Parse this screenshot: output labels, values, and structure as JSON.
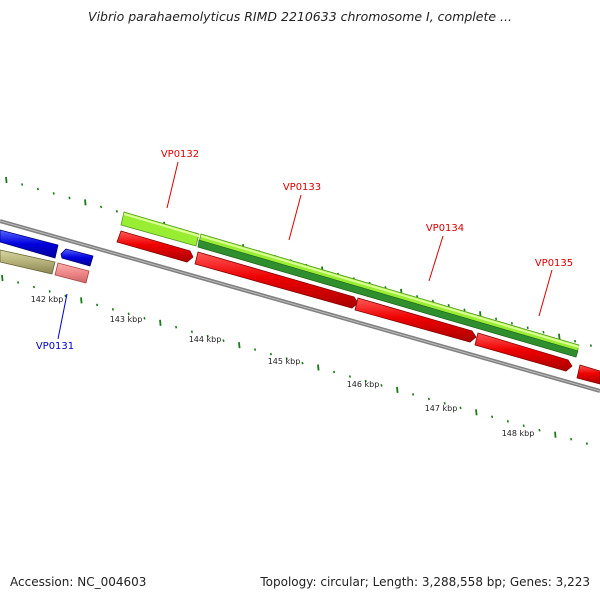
{
  "title": "Vibrio parahaemolyticus RIMD 2210633 chromosome I, complete ...",
  "footer": {
    "accession": "Accession: NC_004603",
    "topology": "Topology: circular; Length: 3,288,558 bp; Genes: 3,223"
  },
  "ruler": {
    "labels": [
      "142 kbp",
      "143 kbp",
      "144 kbp",
      "145 kbp",
      "146 kbp",
      "147 kbp",
      "148 kbp"
    ]
  },
  "genes": {
    "labels": [
      {
        "id": "VP0131",
        "color": "#0000cc"
      },
      {
        "id": "VP0132",
        "color": "#dd0000"
      },
      {
        "id": "VP0133",
        "color": "#dd0000"
      },
      {
        "id": "VP0134",
        "color": "#dd0000"
      },
      {
        "id": "VP0135",
        "color": "#dd0000"
      }
    ]
  },
  "colors": {
    "backbone": "#808080",
    "cds": "#ee0000",
    "gene_light": "#99ee33",
    "gene_dark": "#2f8f2f",
    "ticks": "#1a7a1a",
    "forward_other": "#0000dd",
    "reverse_other": "#b5b07a",
    "pink": "#ee8888"
  }
}
